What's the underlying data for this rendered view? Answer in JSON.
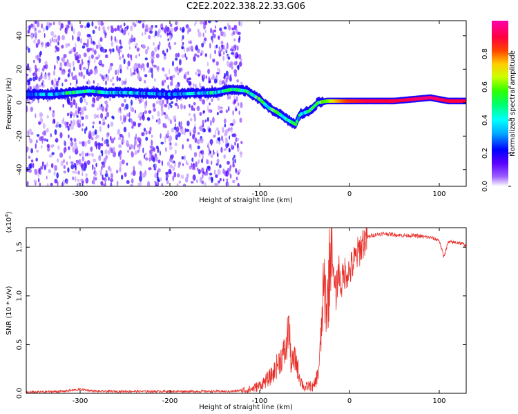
{
  "title": "C2E2.2022.338.22.33.G06",
  "chart_data": [
    {
      "type": "heatmap",
      "xlabel": "Height of straight line (km)",
      "ylabel": "Frequency (Hz)",
      "xlim": [
        -360,
        130
      ],
      "ylim": [
        -50,
        49
      ],
      "xticks": [
        -300,
        -200,
        -100,
        0,
        100
      ],
      "yticks": [
        -40,
        -20,
        0,
        20,
        40
      ],
      "colorbar": {
        "label": "Normalized spectral amplitude",
        "range": [
          0.0,
          1.0
        ],
        "ticks": [
          "0.0",
          "0.2",
          "0.4",
          "0.6",
          "0.8"
        ],
        "colors": [
          "#ffffff",
          "#9b5cff",
          "#5a00ff",
          "#0000ff",
          "#00aaff",
          "#00ffff",
          "#00ff66",
          "#33ff00",
          "#ccff00",
          "#ffcc00",
          "#ff4400",
          "#ff0040",
          "#ff00aa"
        ]
      },
      "noise_region_x": [
        -360,
        -120
      ],
      "ridge": [
        {
          "x": -360,
          "freq": 5,
          "amp": 0.3
        },
        {
          "x": -330,
          "freq": 5,
          "amp": 0.35
        },
        {
          "x": -310,
          "freq": 6,
          "amp": 0.55
        },
        {
          "x": -290,
          "freq": 7,
          "amp": 0.5
        },
        {
          "x": -270,
          "freq": 6,
          "amp": 0.45
        },
        {
          "x": -250,
          "freq": 6,
          "amp": 0.4
        },
        {
          "x": -200,
          "freq": 5,
          "amp": 0.3
        },
        {
          "x": -150,
          "freq": 6,
          "amp": 0.45
        },
        {
          "x": -130,
          "freq": 8,
          "amp": 0.5
        },
        {
          "x": -115,
          "freq": 7,
          "amp": 0.5
        },
        {
          "x": -100,
          "freq": 2,
          "amp": 0.55
        },
        {
          "x": -90,
          "freq": -3,
          "amp": 0.55
        },
        {
          "x": -80,
          "freq": -6,
          "amp": 0.6
        },
        {
          "x": -70,
          "freq": -10,
          "amp": 0.5
        },
        {
          "x": -60,
          "freq": -13,
          "amp": 0.5
        },
        {
          "x": -55,
          "freq": -7,
          "amp": 0.45
        },
        {
          "x": -45,
          "freq": -5,
          "amp": 0.5
        },
        {
          "x": -35,
          "freq": 0,
          "amp": 0.55
        },
        {
          "x": -25,
          "freq": 1,
          "amp": 0.6
        },
        {
          "x": -15,
          "freq": 1,
          "amp": 0.75
        },
        {
          "x": 0,
          "freq": 1,
          "amp": 0.85
        },
        {
          "x": 20,
          "freq": 1,
          "amp": 0.9
        },
        {
          "x": 50,
          "freq": 1,
          "amp": 0.9
        },
        {
          "x": 90,
          "freq": 3,
          "amp": 0.95
        },
        {
          "x": 110,
          "freq": 1,
          "amp": 0.9
        },
        {
          "x": 130,
          "freq": 1,
          "amp": 0.9
        }
      ]
    },
    {
      "type": "line",
      "xlabel": "Height of straight line (km)",
      "ylabel": "SNR (10 * v/v)",
      "y_multiplier": "(x10",
      "y_multiplier_exp": "4",
      "y_multiplier_close": ")",
      "xlim": [
        -360,
        130
      ],
      "ylim": [
        0,
        1.7
      ],
      "xticks": [
        -300,
        -200,
        -100,
        0,
        100
      ],
      "yticks": [
        "0.0",
        "0.5",
        "1.0",
        "1.5"
      ],
      "yticks_values": [
        0,
        0.5,
        1.0,
        1.5
      ],
      "color": "#e8302a",
      "series": [
        {
          "x": [
            -360,
            -320,
            -300,
            -280,
            -240,
            -200,
            -160,
            -130,
            -110,
            -100,
            -90,
            -85,
            -80,
            -75,
            -70,
            -68,
            -65,
            -60,
            -55,
            -50,
            -45,
            -40,
            -35,
            -32,
            -30,
            -28,
            -25,
            -22,
            -20,
            -18,
            -15,
            -12,
            -10,
            -5,
            0,
            5,
            10,
            15,
            20,
            25,
            30,
            40,
            50,
            60,
            70,
            80,
            90,
            100,
            105,
            110,
            120,
            130
          ],
          "values": [
            0.01,
            0.02,
            0.04,
            0.02,
            0.02,
            0.02,
            0.02,
            0.02,
            0.04,
            0.08,
            0.15,
            0.2,
            0.3,
            0.38,
            0.45,
            0.76,
            0.3,
            0.35,
            0.15,
            0.05,
            0.08,
            0.06,
            0.2,
            0.5,
            0.9,
            1.1,
            0.85,
            1.3,
            1.7,
            1.2,
            1.0,
            1.3,
            1.1,
            1.25,
            1.25,
            1.35,
            1.45,
            1.55,
            1.6,
            1.62,
            1.63,
            1.64,
            1.63,
            1.62,
            1.62,
            1.61,
            1.6,
            1.57,
            1.4,
            1.55,
            1.55,
            1.52
          ]
        }
      ]
    }
  ]
}
